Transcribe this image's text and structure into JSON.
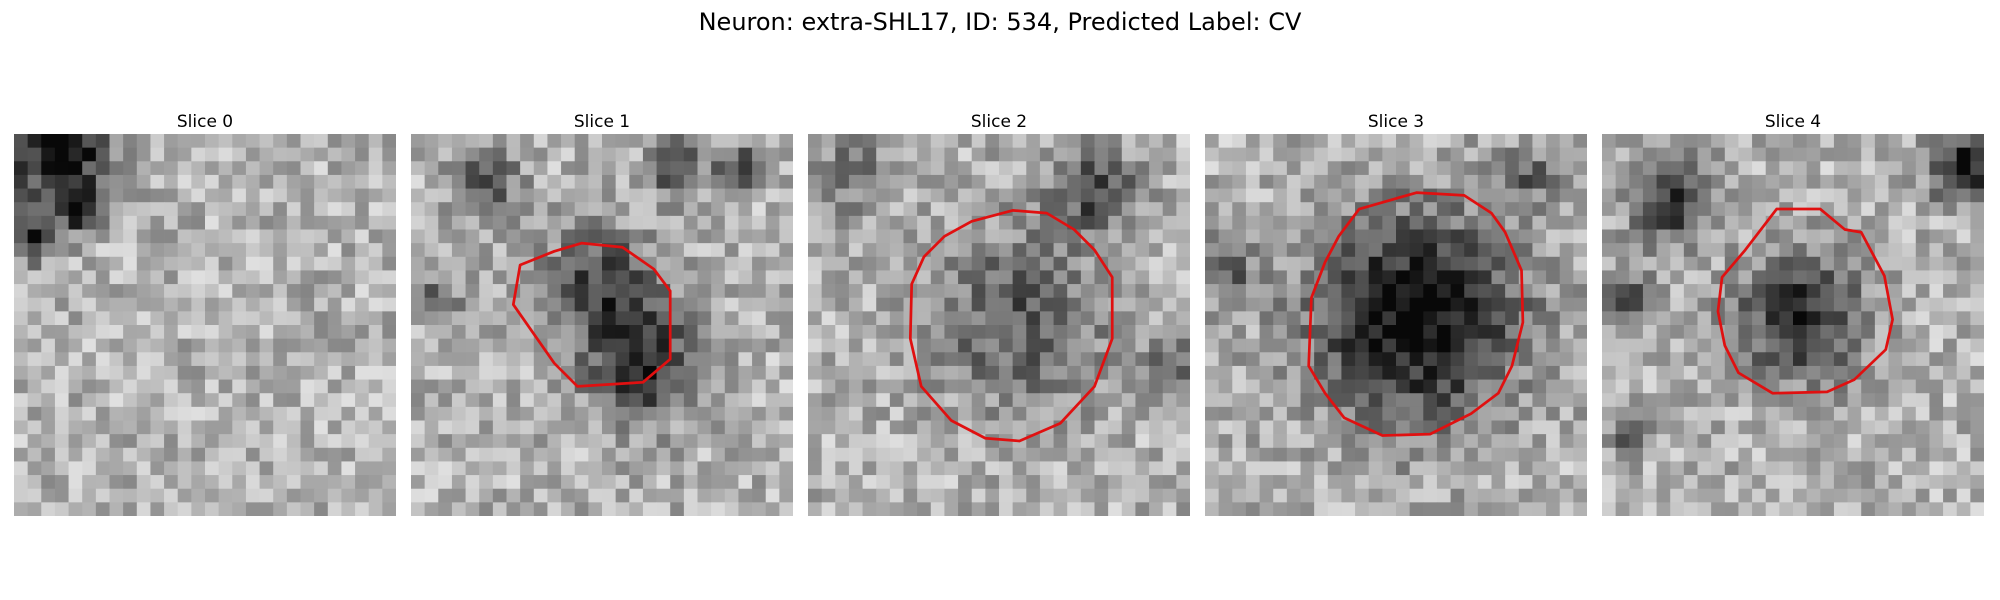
{
  "title": "Neuron: extra-SHL17, ID: 534, Predicted Label: CV",
  "colors": {
    "contour": "#e01010",
    "background": "#ffffff"
  },
  "slices": [
    {
      "label": "Slice 0",
      "seed": 11,
      "dark_blobs": [
        [
          3.5,
          1.2,
          3.0,
          0.8
        ],
        [
          4.5,
          5.5,
          1.8,
          0.6
        ],
        [
          -1,
          4.5,
          2.2,
          0.5
        ],
        [
          1.5,
          8.0,
          1.3,
          0.6
        ]
      ],
      "contour": null
    },
    {
      "label": "Slice 1",
      "seed": 23,
      "dark_blobs": [
        [
          17,
          17,
          4.0,
          0.55
        ],
        [
          14,
          11,
          4.0,
          0.45
        ],
        [
          5.5,
          3.5,
          2.5,
          0.35
        ],
        [
          19.5,
          2.5,
          2.0,
          0.45
        ],
        [
          24,
          2.5,
          1.5,
          0.5
        ],
        [
          2,
          12,
          1.5,
          0.35
        ]
      ],
      "contour": [
        [
          15.5,
          8.3
        ],
        [
          17.8,
          9.9
        ],
        [
          19,
          11.5
        ],
        [
          19,
          16.5
        ],
        [
          17,
          18.2
        ],
        [
          12.2,
          18.5
        ],
        [
          10.5,
          16.8
        ],
        [
          7.5,
          12.5
        ],
        [
          8,
          9.6
        ],
        [
          10.5,
          8.6
        ],
        [
          12.5,
          8.0
        ]
      ]
    },
    {
      "label": "Slice 2",
      "seed": 37,
      "dark_blobs": [
        [
          15.5,
          13.5,
          6.5,
          0.35
        ],
        [
          21,
          4,
          3,
          0.45
        ],
        [
          3,
          3,
          2.5,
          0.3
        ],
        [
          27,
          17,
          2,
          0.3
        ]
      ],
      "contour": [
        [
          15,
          5.6
        ],
        [
          17.5,
          5.8
        ],
        [
          19.5,
          7
        ],
        [
          21,
          8.5
        ],
        [
          22.3,
          10.5
        ],
        [
          22.3,
          15
        ],
        [
          21,
          18.5
        ],
        [
          18.5,
          21.2
        ],
        [
          15.5,
          22.5
        ],
        [
          13,
          22.3
        ],
        [
          10.5,
          21
        ],
        [
          8.3,
          18.5
        ],
        [
          7.5,
          15
        ],
        [
          7.6,
          11
        ],
        [
          8.5,
          9
        ],
        [
          10,
          7.5
        ],
        [
          12,
          6.4
        ]
      ]
    },
    {
      "label": "Slice 3",
      "seed": 41,
      "dark_blobs": [
        [
          15.5,
          13.5,
          7.5,
          0.7
        ],
        [
          1.5,
          10,
          2.5,
          0.3
        ],
        [
          24,
          3,
          2,
          0.3
        ]
      ],
      "contour": [
        [
          15.5,
          4.3
        ],
        [
          19,
          4.5
        ],
        [
          21,
          5.8
        ],
        [
          22,
          7.2
        ],
        [
          23.2,
          10
        ],
        [
          23.3,
          13.8
        ],
        [
          22.5,
          17
        ],
        [
          21.5,
          19
        ],
        [
          19.5,
          20.5
        ],
        [
          16.5,
          22
        ],
        [
          13,
          22.1
        ],
        [
          10.2,
          20.8
        ],
        [
          8.8,
          19
        ],
        [
          7.6,
          17
        ],
        [
          7.8,
          12
        ],
        [
          8.8,
          9.4
        ],
        [
          9.8,
          7.5
        ],
        [
          11.3,
          5.5
        ]
      ]
    },
    {
      "label": "Slice 4",
      "seed": 53,
      "dark_blobs": [
        [
          14.5,
          13.5,
          4.5,
          0.55
        ],
        [
          5,
          5,
          3.0,
          0.5
        ],
        [
          1.5,
          12,
          2.2,
          0.4
        ],
        [
          26.5,
          2.5,
          2.5,
          0.6
        ],
        [
          2,
          22,
          1.5,
          0.35
        ]
      ],
      "contour": [
        [
          12.8,
          5.5
        ],
        [
          16,
          5.5
        ],
        [
          17.8,
          7
        ],
        [
          19,
          7.2
        ],
        [
          20.7,
          10.4
        ],
        [
          21.3,
          13.6
        ],
        [
          20.8,
          15.8
        ],
        [
          18.5,
          18
        ],
        [
          16.5,
          18.9
        ],
        [
          12.5,
          19
        ],
        [
          10,
          17.5
        ],
        [
          9,
          15.5
        ],
        [
          8.5,
          13
        ],
        [
          8.8,
          10.5
        ],
        [
          10.5,
          8.5
        ]
      ]
    }
  ]
}
